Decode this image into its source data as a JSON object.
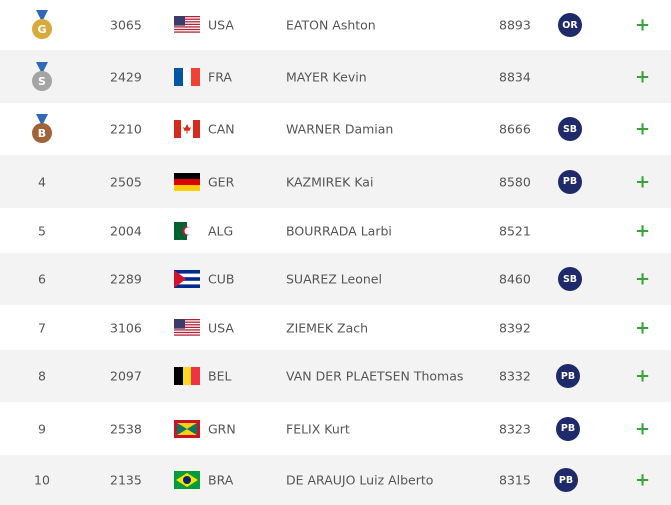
{
  "table": {
    "rows": [
      {
        "rank": "G",
        "bib": "3065",
        "country": "USA",
        "name": "EATON Ashton",
        "mark": "8893",
        "record": "OR",
        "add": "+"
      },
      {
        "rank": "S",
        "bib": "2429",
        "country": "FRA",
        "name": "MAYER Kevin",
        "mark": "8834",
        "record": null,
        "add": "+"
      },
      {
        "rank": "B",
        "bib": "2210",
        "country": "CAN",
        "name": "WARNER Damian",
        "mark": "8666",
        "record": "SB",
        "add": "+"
      },
      {
        "rank": "4",
        "bib": "2505",
        "country": "GER",
        "name": "KAZMIREK Kai",
        "mark": "8580",
        "record": "PB",
        "add": "+"
      },
      {
        "rank": "5",
        "bib": "2004",
        "country": "ALG",
        "name": "BOURRADA Larbi",
        "mark": "8521",
        "record": null,
        "add": "+"
      },
      {
        "rank": "6",
        "bib": "2289",
        "country": "CUB",
        "name": "SUAREZ Leonel",
        "mark": "8460",
        "record": "SB",
        "add": "+"
      },
      {
        "rank": "7",
        "bib": "3106",
        "country": "USA",
        "name": "ZIEMEK Zach",
        "mark": "8392",
        "record": null,
        "add": "+"
      },
      {
        "rank": "8",
        "bib": "2097",
        "country": "BEL",
        "name": "VAN DER PLAETSEN Thomas",
        "mark": "8332",
        "record": "PB",
        "add": "+"
      },
      {
        "rank": "9",
        "bib": "2538",
        "country": "GRN",
        "name": "FELIX Kurt",
        "mark": "8323",
        "record": "PB",
        "add": "+"
      },
      {
        "rank": "10",
        "bib": "2135",
        "country": "BRA",
        "name": "DE ARAUJO Luiz Alberto",
        "mark": "8315",
        "record": "PB",
        "add": "+"
      }
    ]
  }
}
